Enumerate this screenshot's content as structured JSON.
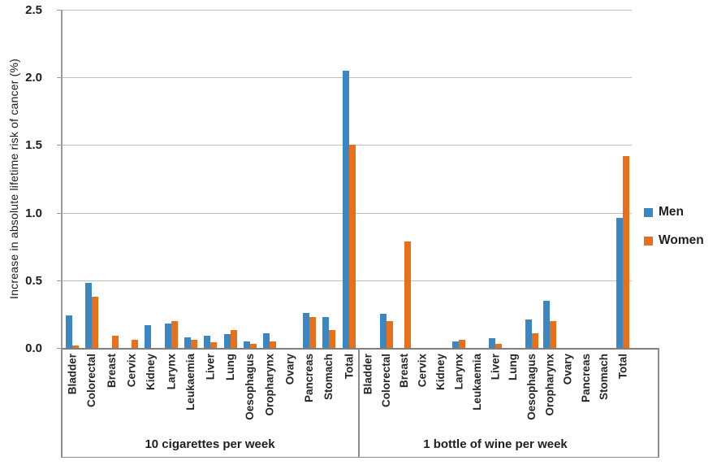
{
  "chart_data": {
    "type": "bar",
    "title": "",
    "ylabel": "Increase in absolute lifetime risk of cancer (%)",
    "xlabel": "",
    "ylim": [
      0,
      2.5
    ],
    "yticks": [
      "0.0",
      "0.5",
      "1.0",
      "1.5",
      "2.0",
      "2.5"
    ],
    "grid": true,
    "legend": {
      "position": "right",
      "entries": [
        {
          "label": "Men",
          "color": "#3b87c4"
        },
        {
          "label": "Women",
          "color": "#e8701a"
        }
      ]
    },
    "categories": [
      "Bladder",
      "Colorectal",
      "Breast",
      "Cervix",
      "Kidney",
      "Larynx",
      "Leukaemia",
      "Liver",
      "Lung",
      "Oesophagus",
      "Oropharynx",
      "Ovary",
      "Pancreas",
      "Stomach",
      "Total"
    ],
    "groups": [
      {
        "label": "10 cigarettes per week",
        "series": [
          {
            "name": "Men",
            "values": [
              0.24,
              0.48,
              0,
              0,
              0.17,
              0.18,
              0.08,
              0.09,
              0.1,
              0.05,
              0.11,
              0,
              0.26,
              0.23,
              2.05
            ]
          },
          {
            "name": "Women",
            "values": [
              0.02,
              0.38,
              0.09,
              0.06,
              0,
              0.2,
              0.06,
              0.04,
              0.13,
              0.03,
              0.05,
              0,
              0.23,
              0.13,
              1.5
            ]
          }
        ]
      },
      {
        "label": "1 bottle of wine per week",
        "series": [
          {
            "name": "Men",
            "values": [
              0,
              0.25,
              0,
              0,
              0,
              0.05,
              0,
              0.07,
              0,
              0.21,
              0.35,
              0,
              0,
              0,
              0.96
            ]
          },
          {
            "name": "Women",
            "values": [
              0,
              0.2,
              0.79,
              0,
              0,
              0.06,
              0,
              0.03,
              0,
              0.11,
              0.2,
              0,
              0,
              0,
              1.42
            ]
          }
        ]
      }
    ]
  }
}
